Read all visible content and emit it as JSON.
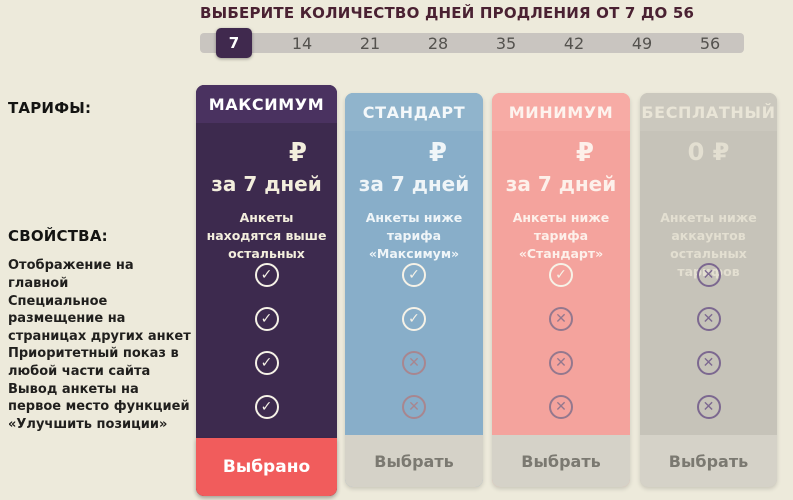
{
  "header": {
    "title": "ВЫБЕРИТЕ КОЛИЧЕСТВО ДНЕЙ ПРОДЛЕНИЯ ОТ 7 ДО 56"
  },
  "labels": {
    "tariffs": "ТАРИФЫ:",
    "properties": "СВОЙСТВА:"
  },
  "day_selector": {
    "options": [
      "7",
      "14",
      "21",
      "28",
      "35",
      "42",
      "49",
      "56"
    ],
    "selected": "7"
  },
  "features": [
    "Отображение на главной",
    "Специальное размещение на страницах других анкет",
    "Приоритетный показ в любой части сайта",
    "Вывод анкеты на первое место функцией «Улучшить позиции»"
  ],
  "cards": [
    {
      "title": "МАКСИМУМ",
      "price": "₽",
      "period": "за 7 дней",
      "description": "Анкеты находятся выше остальных",
      "features": [
        "check",
        "check",
        "check",
        "check"
      ],
      "button": "Выбрано",
      "selected": true
    },
    {
      "title": "СТАНДАРТ",
      "price": "₽",
      "period": "за 7 дней",
      "description": "Анкеты ниже тарифа «Максимум»",
      "features": [
        "check",
        "check",
        "cross",
        "cross"
      ],
      "button": "Выбрать",
      "selected": false
    },
    {
      "title": "МИНИМУМ",
      "price": "₽",
      "period": "за 7 дней",
      "description": "Анкеты ниже тарифа «Стандарт»",
      "features": [
        "check",
        "cross",
        "cross",
        "cross"
      ],
      "button": "Выбрать",
      "selected": false
    },
    {
      "title": "БЕСПЛАТНЫЙ",
      "price": "0 ₽",
      "period": "",
      "description": "Анкеты ниже аккаунтов остальных тарифов",
      "features": [
        "cross",
        "cross",
        "cross",
        "cross"
      ],
      "button": "Выбрать",
      "selected": false
    }
  ],
  "colors": {
    "background": "#edeadb",
    "title_text": "#4a2132",
    "selected_day_bg": "#40294e",
    "maximum_card": "#3d2a4e",
    "standard_card": "#88aec9",
    "minimum_card": "#f4a39d",
    "free_card": "#c6c3b9",
    "selected_button": "#f15c5c",
    "idle_button": "#d5d2c8"
  }
}
